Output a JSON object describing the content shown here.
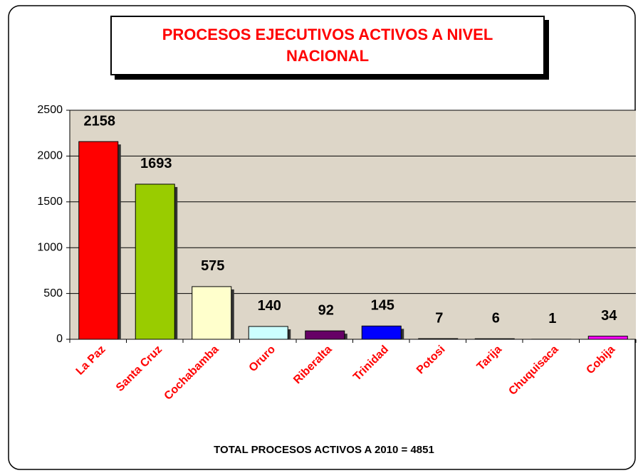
{
  "chart_data": {
    "type": "bar",
    "title": "PROCESOS EJECUTIVOS ACTIVOS A NIVEL NACIONAL",
    "footer": "TOTAL PROCESOS ACTIVOS A 2010 = 4851",
    "categories": [
      "La Paz",
      "Santa Cruz",
      "Cochabamba",
      "Oruro",
      "Riberalta",
      "Trinidad",
      "Potosi",
      "Tarija",
      "Chuquisaca",
      "Cobija"
    ],
    "values": [
      2158,
      1693,
      575,
      140,
      92,
      145,
      7,
      6,
      1,
      34
    ],
    "colors": [
      "#ff0000",
      "#99cc00",
      "#ffffcc",
      "#ccffff",
      "#660066",
      "#0000ff",
      "#333399",
      "#ff9900",
      "#993300",
      "#ff00ff"
    ],
    "ylim": [
      0,
      2500
    ],
    "yticks": [
      0,
      500,
      1000,
      1500,
      2000,
      2500
    ],
    "grid": true
  }
}
